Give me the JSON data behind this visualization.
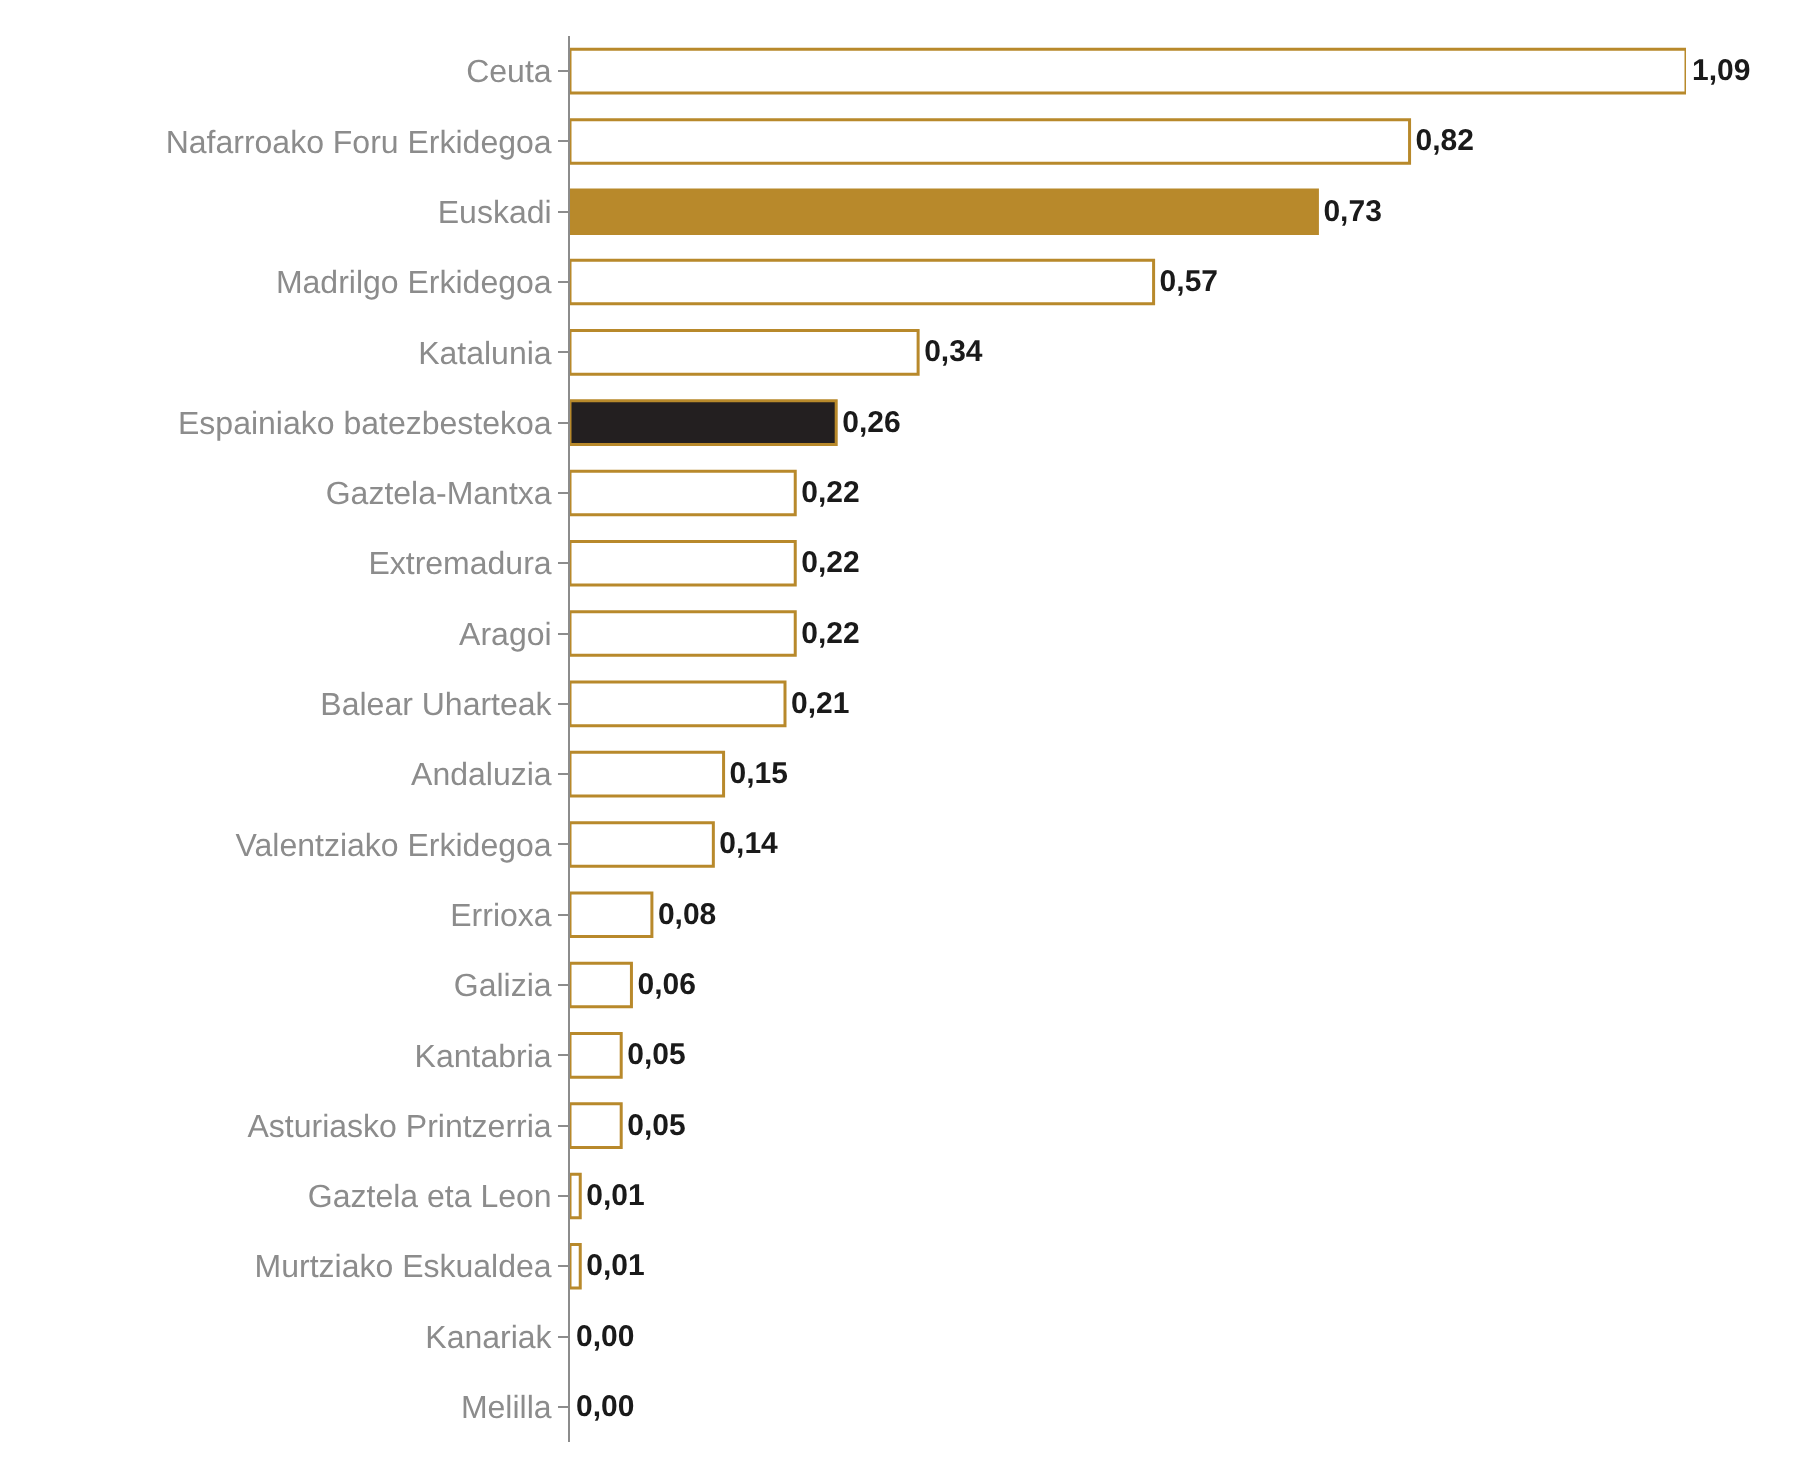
{
  "chart_data": {
    "type": "bar",
    "orientation": "horizontal",
    "categories": [
      "Ceuta",
      "Nafarroako Foru Erkidegoa",
      "Euskadi",
      "Madrilgo Erkidegoa",
      "Katalunia",
      "Espainiako batezbestekoa",
      "Gaztela-Mantxa",
      "Extremadura",
      "Aragoi",
      "Balear Uharteak",
      "Andaluzia",
      "Valentziako Erkidegoa",
      "Errioxa",
      "Galizia",
      "Kantabria",
      "Asturiasko Printzerria",
      "Gaztela eta Leon",
      "Murtziako Eskualdea",
      "Kanariak",
      "Melilla"
    ],
    "series": [
      {
        "color": "#b8892b",
        "colors": [
          "#ffffff",
          "#ffffff",
          "#b8892b",
          "#ffffff",
          "#ffffff",
          "#231f20",
          "#ffffff",
          "#ffffff",
          "#ffffff",
          "#ffffff",
          "#ffffff",
          "#ffffff",
          "#ffffff",
          "#ffffff",
          "#ffffff",
          "#ffffff",
          "#ffffff",
          "#ffffff",
          "#ffffff",
          "#ffffff"
        ],
        "values": [
          1.09,
          0.82,
          0.73,
          0.57,
          0.34,
          0.26,
          0.22,
          0.22,
          0.22,
          0.21,
          0.15,
          0.14,
          0.08,
          0.06,
          0.05,
          0.05,
          0.01,
          0.01,
          0.0,
          0.0
        ],
        "value_labels": [
          "1,09",
          "0,82",
          "0,73",
          "0,57",
          "0,34",
          "0,26",
          "0,22",
          "0,22",
          "0,22",
          "0,21",
          "0,15",
          "0,14",
          "0,08",
          "0,06",
          "0,05",
          "0,05",
          "0,01",
          "0,01",
          "0,00",
          "0,00"
        ]
      }
    ],
    "legend": false,
    "tick_labels": "y"
  }
}
